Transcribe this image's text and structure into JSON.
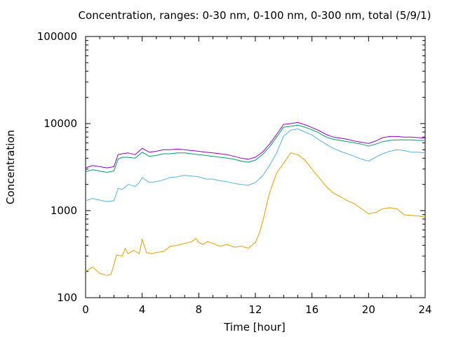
{
  "chart_data": {
    "type": "line",
    "title": "Concentration, ranges: 0-30 nm, 0-100 nm, 0-300 nm, total (5/9/1)",
    "xlabel": "Time [hour]",
    "ylabel": "Concentration",
    "xlim": [
      0,
      24
    ],
    "ylim": [
      100,
      100000
    ],
    "y_scale": "log",
    "grid": false,
    "legend": "none",
    "x_ticks": [
      0,
      4,
      8,
      12,
      16,
      20,
      24
    ],
    "x_tick_labels": [
      "0",
      "4",
      "8",
      "12",
      "16",
      "20",
      "24"
    ],
    "y_ticks": [
      100,
      1000,
      10000,
      100000
    ],
    "y_tick_labels": [
      "100",
      "1000",
      "10000",
      "100000"
    ],
    "series": [
      {
        "color": "#e69f00",
        "x": [
          0,
          0.5,
          1,
          1.5,
          1.8,
          2.2,
          2.6,
          2.8,
          3.0,
          3.4,
          3.8,
          4.0,
          4.3,
          4.7,
          5.0,
          5.5,
          6.0,
          6.5,
          7.0,
          7.5,
          7.8,
          8.0,
          8.3,
          8.6,
          9.0,
          9.5,
          10.0,
          10.5,
          11.0,
          11.5,
          12.0,
          12.3,
          12.6,
          13.0,
          13.5,
          14.0,
          14.5,
          15.0,
          15.5,
          16.0,
          16.5,
          17.0,
          17.5,
          18.0,
          18.5,
          19.0,
          19.5,
          20.0,
          20.5,
          21.0,
          21.5,
          22.0,
          22.5,
          23.0,
          23.5,
          24.0
        ],
        "y": [
          200,
          225,
          190,
          180,
          185,
          310,
          300,
          370,
          320,
          350,
          320,
          470,
          330,
          320,
          330,
          340,
          390,
          400,
          420,
          440,
          480,
          430,
          410,
          440,
          420,
          390,
          410,
          380,
          390,
          370,
          430,
          560,
          850,
          1600,
          2700,
          3500,
          4600,
          4400,
          3800,
          3000,
          2400,
          1900,
          1600,
          1450,
          1300,
          1200,
          1050,
          920,
          950,
          1050,
          1080,
          1050,
          900,
          880,
          870,
          840
        ]
      },
      {
        "color": "#56b4e9",
        "x": [
          0,
          0.5,
          1,
          1.5,
          2.0,
          2.3,
          2.6,
          3.0,
          3.5,
          3.8,
          4.0,
          4.5,
          5.0,
          5.5,
          6.0,
          6.5,
          7.0,
          7.5,
          8.0,
          8.5,
          9.0,
          9.5,
          10.0,
          10.5,
          11.0,
          11.5,
          12.0,
          12.5,
          13.0,
          13.5,
          14.0,
          14.5,
          15.0,
          15.5,
          16.0,
          16.5,
          17.0,
          17.5,
          18.0,
          18.5,
          19.0,
          19.5,
          20.0,
          20.5,
          21.0,
          21.5,
          22.0,
          22.5,
          23.0,
          23.5,
          24.0
        ],
        "y": [
          1300,
          1380,
          1320,
          1270,
          1300,
          1800,
          1750,
          2000,
          1900,
          2100,
          2400,
          2100,
          2150,
          2250,
          2400,
          2450,
          2550,
          2500,
          2450,
          2300,
          2300,
          2200,
          2150,
          2050,
          2000,
          1950,
          2100,
          2500,
          3300,
          4600,
          7200,
          8400,
          8700,
          8000,
          7400,
          6500,
          5800,
          5200,
          4800,
          4500,
          4200,
          3900,
          3700,
          4100,
          4500,
          4800,
          5000,
          4900,
          4700,
          4700,
          4600
        ]
      },
      {
        "color": "#009e73",
        "x": [
          0,
          0.5,
          1,
          1.5,
          2.0,
          2.3,
          2.6,
          3.0,
          3.5,
          4.0,
          4.5,
          5.0,
          5.5,
          6.0,
          6.5,
          7.0,
          7.5,
          8.0,
          8.5,
          9.0,
          9.5,
          10.0,
          10.5,
          11.0,
          11.5,
          12.0,
          12.5,
          13.0,
          13.5,
          14.0,
          14.5,
          15.0,
          15.5,
          16.0,
          16.5,
          17.0,
          17.5,
          18.0,
          18.5,
          19.0,
          19.5,
          20.0,
          20.5,
          21.0,
          21.5,
          22.0,
          22.5,
          23.0,
          23.5,
          24.0
        ],
        "y": [
          2800,
          2950,
          2850,
          2750,
          2850,
          3900,
          4100,
          4100,
          4000,
          4700,
          4200,
          4300,
          4500,
          4500,
          4600,
          4600,
          4500,
          4400,
          4300,
          4200,
          4100,
          4000,
          3900,
          3700,
          3600,
          3800,
          4400,
          5400,
          7000,
          9100,
          9300,
          9600,
          9100,
          8500,
          7800,
          7000,
          6600,
          6400,
          6200,
          6000,
          5800,
          5500,
          5800,
          6200,
          6400,
          6500,
          6500,
          6500,
          6400,
          6400
        ]
      },
      {
        "color": "#9400d3",
        "x": [
          0,
          0.5,
          1,
          1.5,
          2.0,
          2.3,
          2.6,
          3.0,
          3.5,
          4.0,
          4.5,
          5.0,
          5.5,
          6.0,
          6.5,
          7.0,
          7.5,
          8.0,
          8.5,
          9.0,
          9.5,
          10.0,
          10.5,
          11.0,
          11.5,
          12.0,
          12.5,
          13.0,
          13.5,
          14.0,
          14.5,
          15.0,
          15.5,
          16.0,
          16.5,
          17.0,
          17.5,
          18.0,
          18.5,
          19.0,
          19.5,
          20.0,
          20.5,
          21.0,
          21.5,
          22.0,
          22.5,
          23.0,
          23.5,
          24.0
        ],
        "y": [
          3100,
          3300,
          3200,
          3100,
          3200,
          4400,
          4500,
          4600,
          4400,
          5200,
          4700,
          4800,
          5000,
          5000,
          5100,
          5000,
          4900,
          4800,
          4700,
          4600,
          4500,
          4400,
          4200,
          4000,
          3900,
          4100,
          4700,
          5800,
          7500,
          9800,
          10000,
          10300,
          9700,
          9000,
          8300,
          7500,
          7000,
          6800,
          6600,
          6300,
          6100,
          5900,
          6300,
          6900,
          7100,
          7100,
          7000,
          7000,
          6900,
          6800
        ]
      }
    ]
  }
}
